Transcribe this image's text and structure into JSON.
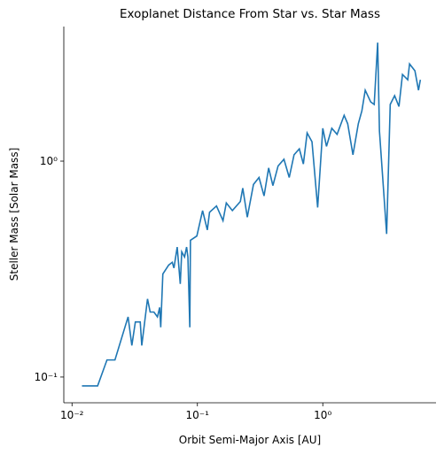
{
  "chart_data": {
    "type": "line",
    "title": "Exoplanet Distance From Star vs. Star Mass",
    "xlabel": "Orbit Semi-Major Axis [AU]",
    "ylabel": "Steller Mass [Solar Mass]",
    "xscale": "log",
    "yscale": "log",
    "xlim": [
      0.0086,
      8.0
    ],
    "ylim": [
      0.076,
      4.2
    ],
    "xticks": [
      {
        "value": 0.01,
        "label": "10⁻²"
      },
      {
        "value": 0.1,
        "label": "10⁻¹"
      },
      {
        "value": 1,
        "label": "10⁰"
      }
    ],
    "yticks": [
      {
        "value": 0.1,
        "label": "10⁻¹"
      },
      {
        "value": 1,
        "label": "10⁰"
      }
    ],
    "x": [
      0.012,
      0.016,
      0.019,
      0.022,
      0.028,
      0.03,
      0.032,
      0.035,
      0.036,
      0.04,
      0.042,
      0.045,
      0.048,
      0.05,
      0.051,
      0.053,
      0.059,
      0.063,
      0.065,
      0.069,
      0.073,
      0.075,
      0.079,
      0.082,
      0.084,
      0.087,
      0.088,
      0.099,
      0.11,
      0.12,
      0.125,
      0.142,
      0.16,
      0.17,
      0.19,
      0.22,
      0.23,
      0.25,
      0.28,
      0.31,
      0.34,
      0.37,
      0.4,
      0.44,
      0.49,
      0.54,
      0.59,
      0.65,
      0.7,
      0.75,
      0.82,
      0.91,
      1.0,
      1.07,
      1.18,
      1.3,
      1.48,
      1.58,
      1.74,
      1.92,
      2.05,
      2.18,
      2.41,
      2.57,
      2.74,
      2.83,
      3.23,
      3.45,
      3.74,
      4.05,
      4.32,
      4.76,
      4.92,
      5.43,
      5.8,
      6.0
    ],
    "series": [
      {
        "name": "mass",
        "color": "#1f77b4",
        "values": [
          0.091,
          0.091,
          0.12,
          0.12,
          0.19,
          0.14,
          0.18,
          0.18,
          0.14,
          0.23,
          0.2,
          0.2,
          0.19,
          0.21,
          0.17,
          0.3,
          0.33,
          0.34,
          0.32,
          0.4,
          0.27,
          0.38,
          0.36,
          0.4,
          0.36,
          0.17,
          0.43,
          0.45,
          0.59,
          0.48,
          0.58,
          0.62,
          0.53,
          0.64,
          0.59,
          0.65,
          0.75,
          0.55,
          0.78,
          0.84,
          0.69,
          0.93,
          0.77,
          0.95,
          1.02,
          0.84,
          1.07,
          1.14,
          0.97,
          1.35,
          1.23,
          0.61,
          1.42,
          1.17,
          1.42,
          1.33,
          1.63,
          1.49,
          1.07,
          1.49,
          1.71,
          2.13,
          1.88,
          1.83,
          3.54,
          1.38,
          0.46,
          1.83,
          2.01,
          1.79,
          2.52,
          2.38,
          2.82,
          2.62,
          2.13,
          2.38
        ]
      }
    ]
  }
}
